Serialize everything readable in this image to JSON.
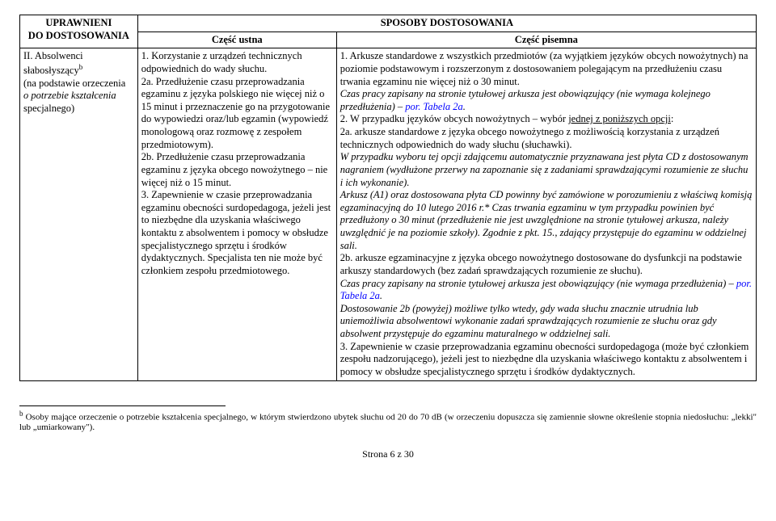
{
  "headers": {
    "uprawnieni_line1": "UPRAWNIENI",
    "uprawnieni_line2": "DO DOSTOSOWANIA",
    "sposoby": "SPOSOBY DOSTOSOWANIA",
    "czesc_ustna": "Część ustna",
    "czesc_pisemna": "Część pisemna"
  },
  "left": {
    "l1": "II. Absolwenci słabosłyszący",
    "sup": "b",
    "l2": "(na podstawie orzeczenia",
    "l3": "o potrzebie kształcenia",
    "l4": "specjalnego)"
  },
  "mid": {
    "p1": "1. Korzystanie z urządzeń technicznych odpowiednich do wady słuchu.",
    "p2": "2a. Przedłużenie czasu przeprowadzania egzaminu z języka polskiego nie więcej niż o 15 minut i przeznaczenie go na przygotowanie do wypowiedzi oraz/lub egzamin (wypowiedź monologową oraz rozmowę z zespołem przedmiotowym).",
    "p3": "2b. Przedłużenie czasu przeprowadzania egzaminu z języka obcego nowożytnego – nie więcej niż o 15 minut.",
    "p4": "3. Zapewnienie w czasie przeprowadzania egzaminu obecności surdopedagoga, jeżeli jest to niezbędne dla uzyskania właściwego kontaktu z absolwentem i pomocy w obsłudze specjalistycznego sprzętu i środków dydaktycznych. Specjalista ten nie może być członkiem zespołu przedmiotowego."
  },
  "right": {
    "p1": "1. Arkusze standardowe z wszystkich przedmiotów (za wyjątkiem języków obcych nowożytnych) na poziomie podstawowym i rozszerzonym z dostosowaniem polegającym na przedłużeniu czasu trwania egzaminu nie więcej niż o 30 minut.",
    "p1ital": "Czas pracy zapisany na stronie tytułowej arkusza jest obowiązujący (nie wymaga kolejnego przedłużenia) – ",
    "p1blue": "por. Tabela 2a",
    "p1dot": ".",
    "p2_intro": "2. W przypadku języków obcych nowożytnych – wybór ",
    "p2_under": "jednej z poniższych opcji",
    "p2_colon": ":",
    "p2a": "2a. arkusze standardowe z języka obcego nowożytnego z możliwością korzystania z urządzeń technicznych odpowiednich do wady słuchu (słuchawki).",
    "p2a_ital": "W przypadku wyboru tej opcji zdającemu automatycznie przyznawana jest płyta CD z dostosowanym nagraniem (wydłużone przerwy na zapoznanie się z zadaniami sprawdzającymi rozumienie ze słuchu i ich wykonanie).",
    "p2a_ital2": "Arkusz (A1) oraz dostosowana płyta CD powinny być zamówione w porozumieniu z właściwą komisją egzaminacyjną do 10 lutego 2016 r.* Czas trwania egzaminu w tym przypadku powinien być przedłużony o 30 minut (przedłużenie nie jest uwzględnione na stronie tytułowej arkusza, należy uwzględnić je na poziomie szkoły). Zgodnie z pkt. 15., zdający przystępuje do egzaminu w oddzielnej sali.",
    "p2b": "2b. arkusze egzaminacyjne z języka obcego nowożytnego dostosowane do dysfunkcji na podstawie arkuszy standardowych (bez zadań sprawdzających rozumienie ze słuchu).",
    "p2b_ital": "Czas pracy zapisany na stronie tytułowej arkusza jest obowiązujący (nie wymaga przedłużenia) – ",
    "p2b_blue": "por. Tabela 2a",
    "p2b_dot": ".",
    "p2b_ital2": "Dostosowanie 2b (powyżej) możliwe tylko wtedy, gdy wada słuchu znacznie utrudnia lub uniemożliwia absolwentowi wykonanie zadań sprawdzających rozumienie ze słuchu oraz gdy absolwent przystępuje do egzaminu maturalnego w oddzielnej sali.",
    "p3": "3. Zapewnienie w czasie przeprowadzania egzaminu obecności surdopedagoga (może być członkiem zespołu nadzorującego), jeżeli jest to niezbędne dla uzyskania właściwego kontaktu z absolwentem i pomocy w obsłudze specjalistycznego sprzętu i środków dydaktycznych."
  },
  "footnote": {
    "sup": "b",
    "text": " Osoby mające orzeczenie o potrzebie kształcenia specjalnego, w którym stwierdzono ubytek słuchu od 20 do 70 dB (w orzeczeniu dopuszcza się zamiennie słowne określenie stopnia niedosłuchu: „lekki\" lub „umiarkowany\")."
  },
  "page": "Strona 6 z 30"
}
